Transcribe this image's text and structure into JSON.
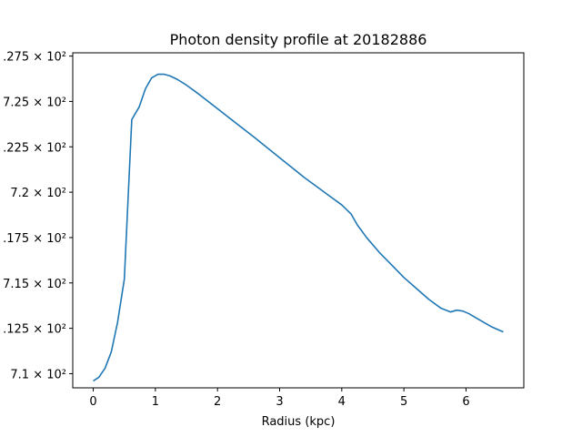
{
  "chart_data": {
    "type": "line",
    "title": "Photon density profile at 20182886",
    "xlabel": "Radius (kpc)",
    "ylabel": "",
    "xlim": [
      -0.33,
      6.93
    ],
    "ylim": [
      709.22,
      727.68
    ],
    "grid": false,
    "legend": "none",
    "x_ticks": [
      {
        "value": 0,
        "label": "0"
      },
      {
        "value": 1,
        "label": "1"
      },
      {
        "value": 2,
        "label": "2"
      },
      {
        "value": 3,
        "label": "3"
      },
      {
        "value": 4,
        "label": "4"
      },
      {
        "value": 5,
        "label": "5"
      },
      {
        "value": 6,
        "label": "6"
      }
    ],
    "y_ticks": [
      {
        "value": 710.0,
        "label": "7.1 × 10²"
      },
      {
        "value": 712.5,
        "label": ".125 × 10²"
      },
      {
        "value": 715.0,
        "label": "7.15 × 10²"
      },
      {
        "value": 717.5,
        "label": ".175 × 10²"
      },
      {
        "value": 720.0,
        "label": "7.2 × 10²"
      },
      {
        "value": 722.5,
        "label": ".225 × 10²"
      },
      {
        "value": 725.0,
        "label": "7.25 × 10²"
      },
      {
        "value": 727.5,
        "label": ".275 × 10²"
      }
    ],
    "series": [
      {
        "color": "#1f77b4",
        "x": [
          0.0,
          0.09,
          0.19,
          0.29,
          0.39,
          0.5,
          0.62,
          0.74,
          0.84,
          0.94,
          1.04,
          1.14,
          1.24,
          1.36,
          1.5,
          1.7,
          2.0,
          2.3,
          2.6,
          3.0,
          3.4,
          3.8,
          4.0,
          4.15,
          4.25,
          4.4,
          4.6,
          4.8,
          5.0,
          5.2,
          5.4,
          5.6,
          5.75,
          5.85,
          5.95,
          6.05,
          6.2,
          6.4,
          6.6
        ],
        "y": [
          709.6,
          709.8,
          710.3,
          711.2,
          712.8,
          715.2,
          724.0,
          724.7,
          725.7,
          726.3,
          726.5,
          726.5,
          726.4,
          726.2,
          725.9,
          725.4,
          724.6,
          723.8,
          723.0,
          721.9,
          720.8,
          719.8,
          719.3,
          718.8,
          718.2,
          717.5,
          716.7,
          716.0,
          715.3,
          714.7,
          714.1,
          713.6,
          713.4,
          713.5,
          713.45,
          713.3,
          713.0,
          712.6,
          712.3
        ]
      }
    ]
  }
}
